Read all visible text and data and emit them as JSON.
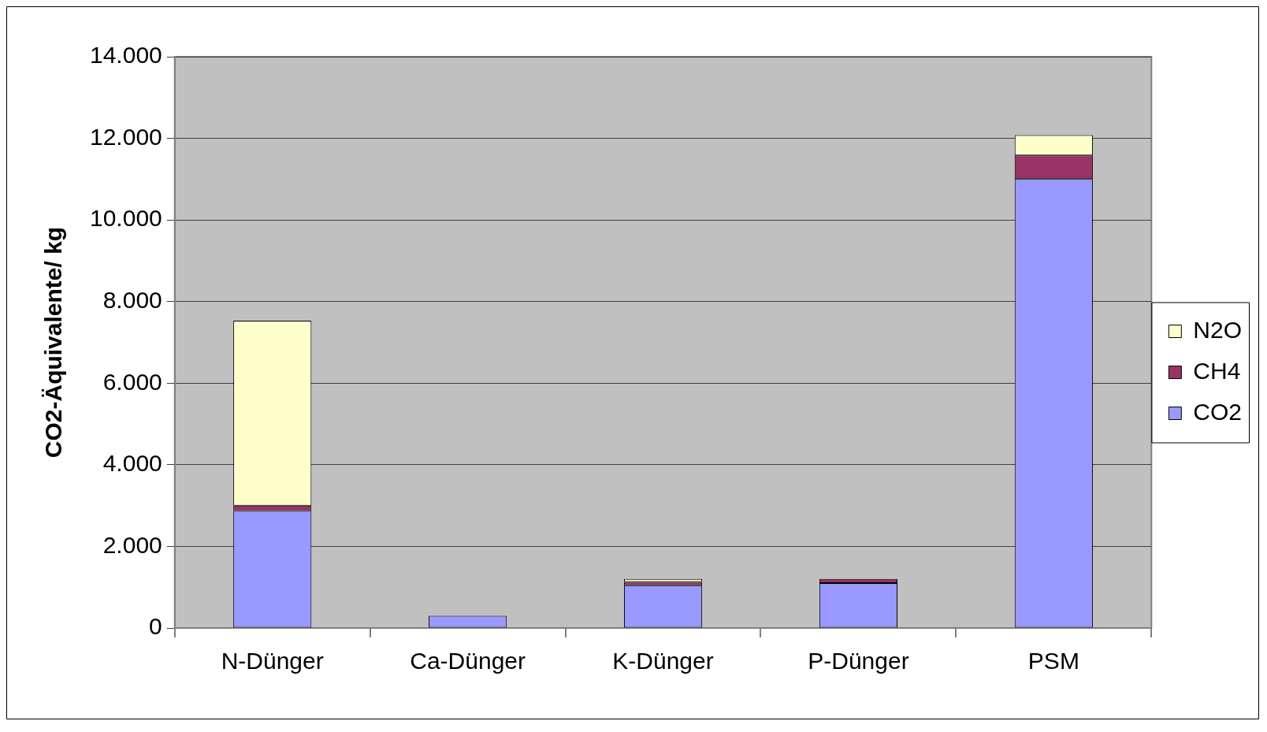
{
  "chart_data": {
    "type": "bar",
    "stacked": true,
    "ylabel": "CO2-Äquivalente/ kg",
    "categories": [
      "N-Dünger",
      "Ca-Dünger",
      "K-Dünger",
      "P-Dünger",
      "PSM"
    ],
    "series": [
      {
        "name": "CO2",
        "color": "#9999ff",
        "values": [
          2870,
          300,
          1050,
          1100,
          11000
        ]
      },
      {
        "name": "CH4",
        "color": "#993366",
        "values": [
          130,
          0,
          80,
          100,
          580
        ]
      },
      {
        "name": "N2O",
        "color": "#ffffcc",
        "values": [
          4530,
          0,
          70,
          null,
          500
        ]
      }
    ],
    "ylim": [
      0,
      14000
    ],
    "yticks": [
      {
        "value": 0,
        "label": "0"
      },
      {
        "value": 2000,
        "label": "2.000"
      },
      {
        "value": 4000,
        "label": "4.000"
      },
      {
        "value": 6000,
        "label": "6.000"
      },
      {
        "value": 8000,
        "label": "8.000"
      },
      {
        "value": 10000,
        "label": "10.000"
      },
      {
        "value": 12000,
        "label": "12.000"
      },
      {
        "value": 14000,
        "label": "14.000"
      }
    ],
    "grid": "y",
    "legend": "right"
  }
}
